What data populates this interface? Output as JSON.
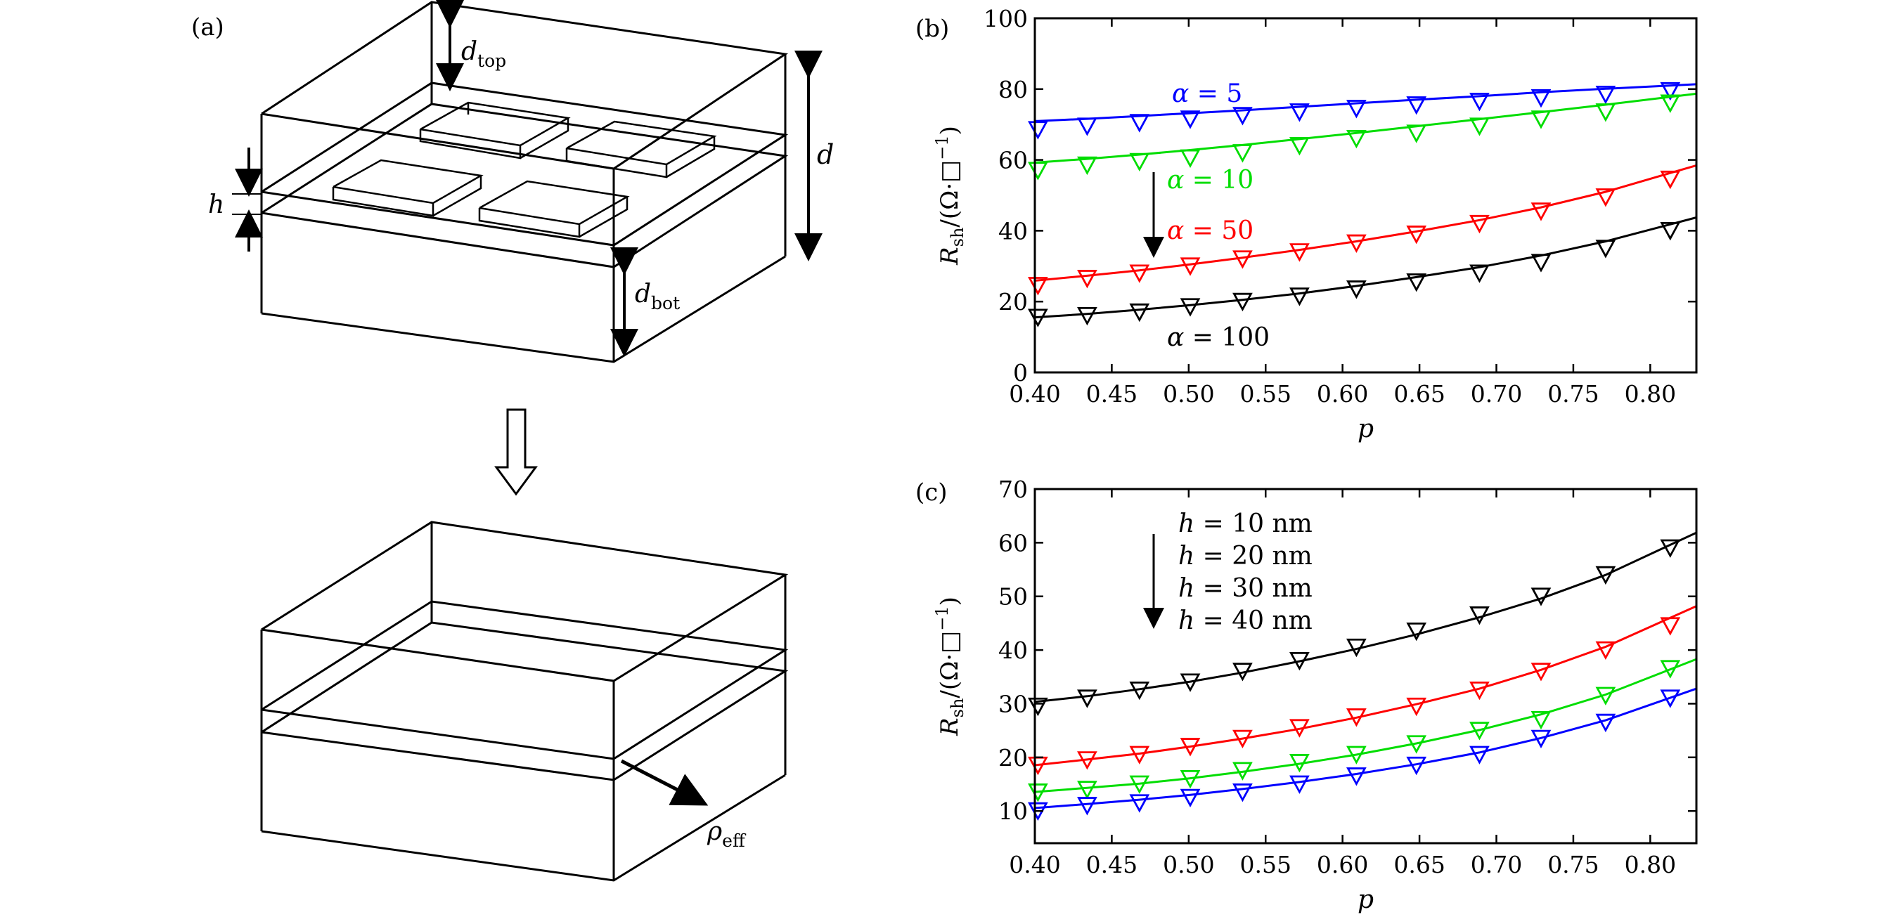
{
  "figure": {
    "panel_a": {
      "label": "(a)",
      "d_top": "d",
      "d_top_sub": "top",
      "d_bot": "d",
      "d_bot_sub": "bot",
      "h": "h",
      "d": "d",
      "rho": "ρ",
      "rho_sub": "eff"
    }
  },
  "chart_data": [
    {
      "panel": "(b)",
      "type": "line",
      "xlabel": "p",
      "ylabel_main": "R",
      "ylabel_sub": "sh",
      "ylabel_rest": "/(Ω·□",
      "ylabel_sup": "−1",
      "ylabel_close": ")",
      "xlim": [
        0.4,
        0.83
      ],
      "ylim": [
        0,
        100
      ],
      "xticks": [
        0.4,
        0.45,
        0.5,
        0.55,
        0.6,
        0.65,
        0.7,
        0.75,
        0.8
      ],
      "xtick_labels": [
        "0.40",
        "0.45",
        "0.50",
        "0.55",
        "0.60",
        "0.65",
        "0.70",
        "0.75",
        "0.80"
      ],
      "yticks": [
        0,
        20,
        40,
        60,
        80,
        100
      ],
      "ytick_labels": [
        "0",
        "20",
        "40",
        "60",
        "80",
        "100"
      ],
      "x": [
        0.402,
        0.434,
        0.468,
        0.501,
        0.535,
        0.572,
        0.609,
        0.648,
        0.689,
        0.729,
        0.771,
        0.813
      ],
      "series": [
        {
          "name": "α = 5",
          "label_var": "α",
          "label_rest": " = 5",
          "color": "#0000ff",
          "points": [
            68.5,
            69.5,
            70.5,
            71.5,
            72.5,
            73.5,
            74.5,
            75.5,
            76.5,
            77.5,
            78.5,
            79.5
          ],
          "curve": [
            71.0,
            71.6,
            72.4,
            73.2,
            74.0,
            75.0,
            76.0,
            77.0,
            78.0,
            79.1,
            80.1,
            81.0
          ]
        },
        {
          "name": "α = 10",
          "label_var": "α",
          "label_rest": " = 10",
          "color": "#00dd00",
          "points": [
            57.0,
            58.5,
            59.5,
            60.5,
            62.0,
            64.0,
            66.0,
            67.5,
            69.5,
            71.5,
            73.5,
            76.0
          ],
          "curve": [
            59.3,
            60.3,
            61.5,
            62.8,
            64.2,
            65.9,
            67.6,
            69.5,
            71.5,
            73.5,
            75.6,
            77.8
          ]
        },
        {
          "name": "α = 50",
          "label_var": "α",
          "label_rest": " = 50",
          "color": "#ff0000",
          "points": [
            24.5,
            26.5,
            28.0,
            30.0,
            32.0,
            34.0,
            36.5,
            39.0,
            42.0,
            45.5,
            49.5,
            54.5
          ],
          "curve": [
            26.0,
            27.3,
            28.8,
            30.5,
            32.4,
            34.6,
            37.0,
            39.8,
            43.0,
            46.6,
            51.0,
            56.3
          ]
        },
        {
          "name": "α = 100",
          "label_var": "α",
          "label_rest": " = 100",
          "color": "#000000",
          "points": [
            15.5,
            16.0,
            17.0,
            18.5,
            20.0,
            21.5,
            23.5,
            25.5,
            28.0,
            31.0,
            35.0,
            40.0
          ],
          "curve": [
            15.6,
            16.5,
            17.7,
            19.0,
            20.5,
            22.3,
            24.4,
            26.9,
            29.7,
            33.0,
            37.0,
            41.8
          ]
        }
      ]
    },
    {
      "panel": "(c)",
      "type": "line",
      "xlabel": "p",
      "ylabel_main": "R",
      "ylabel_sub": "sh",
      "ylabel_rest": "/(Ω·□",
      "ylabel_sup": "−1",
      "ylabel_close": ")",
      "xlim": [
        0.4,
        0.83
      ],
      "ylim": [
        4,
        70
      ],
      "xticks": [
        0.4,
        0.45,
        0.5,
        0.55,
        0.6,
        0.65,
        0.7,
        0.75,
        0.8
      ],
      "xtick_labels": [
        "0.40",
        "0.45",
        "0.50",
        "0.55",
        "0.60",
        "0.65",
        "0.70",
        "0.75",
        "0.80"
      ],
      "yticks": [
        10,
        20,
        30,
        40,
        50,
        60,
        70
      ],
      "ytick_labels": [
        "10",
        "20",
        "30",
        "40",
        "50",
        "60",
        "70"
      ],
      "x": [
        0.402,
        0.434,
        0.468,
        0.501,
        0.535,
        0.572,
        0.609,
        0.648,
        0.689,
        0.729,
        0.771,
        0.813
      ],
      "series": [
        {
          "name": "h = 10 nm",
          "label_var": "h",
          "label_rest": " = 10 nm",
          "color": "#000000",
          "points": [
            29.5,
            31.0,
            32.5,
            34.0,
            36.0,
            38.0,
            40.5,
            43.5,
            46.5,
            50.0,
            54.0,
            59.0
          ],
          "curve": [
            30.4,
            31.4,
            32.7,
            34.1,
            35.8,
            37.9,
            40.2,
            42.9,
            46.1,
            49.6,
            54.0,
            59.6
          ]
        },
        {
          "name": "h = 20 nm",
          "label_var": "h",
          "label_rest": " = 20 nm",
          "color": "#ff0000",
          "points": [
            18.5,
            19.5,
            20.5,
            22.0,
            23.5,
            25.5,
            27.5,
            29.5,
            32.5,
            36.0,
            40.0,
            44.5
          ],
          "curve": [
            18.6,
            19.6,
            20.7,
            22.0,
            23.5,
            25.3,
            27.4,
            29.9,
            32.8,
            36.3,
            40.6,
            46.0
          ]
        },
        {
          "name": "h = 30 nm",
          "label_var": "h",
          "label_rest": " = 30 nm",
          "color": "#00dd00",
          "points": [
            13.5,
            14.0,
            15.0,
            16.0,
            17.5,
            19.0,
            20.5,
            22.5,
            25.0,
            27.0,
            31.5,
            36.5
          ],
          "curve": [
            13.6,
            14.3,
            15.1,
            16.1,
            17.3,
            18.8,
            20.5,
            22.6,
            25.1,
            28.0,
            31.7,
            36.4
          ]
        },
        {
          "name": "h = 40 nm",
          "label_var": "h",
          "label_rest": " = 40 nm",
          "color": "#0000ff",
          "points": [
            10.0,
            11.0,
            11.5,
            12.5,
            13.5,
            15.0,
            16.5,
            18.5,
            20.5,
            23.5,
            26.5,
            31.0
          ],
          "curve": [
            10.6,
            11.3,
            12.1,
            13.0,
            14.1,
            15.4,
            16.9,
            18.7,
            20.9,
            23.6,
            26.9,
            31.1
          ]
        }
      ]
    }
  ]
}
